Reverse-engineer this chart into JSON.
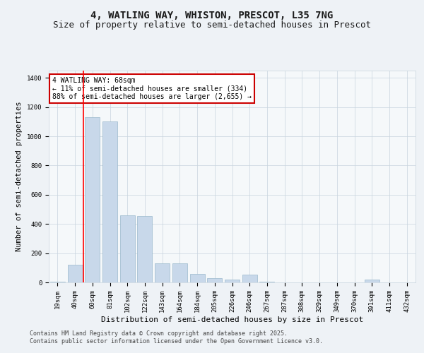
{
  "title": "4, WATLING WAY, WHISTON, PRESCOT, L35 7NG",
  "subtitle": "Size of property relative to semi-detached houses in Prescot",
  "xlabel": "Distribution of semi-detached houses by size in Prescot",
  "ylabel": "Number of semi-detached properties",
  "categories": [
    "19sqm",
    "40sqm",
    "60sqm",
    "81sqm",
    "102sqm",
    "122sqm",
    "143sqm",
    "164sqm",
    "184sqm",
    "205sqm",
    "226sqm",
    "246sqm",
    "267sqm",
    "287sqm",
    "308sqm",
    "329sqm",
    "349sqm",
    "370sqm",
    "391sqm",
    "411sqm",
    "432sqm"
  ],
  "values": [
    5,
    120,
    1130,
    1100,
    460,
    455,
    130,
    130,
    60,
    30,
    20,
    55,
    5,
    0,
    0,
    0,
    0,
    0,
    20,
    0,
    0
  ],
  "bar_color": "#c8d8ea",
  "bar_edge_color": "#9ab8cc",
  "red_line_index": 1.5,
  "annotation_text": "4 WATLING WAY: 68sqm\n← 11% of semi-detached houses are smaller (334)\n88% of semi-detached houses are larger (2,655) →",
  "annotation_box_color": "#ffffff",
  "annotation_box_edge_color": "#cc0000",
  "footer_line1": "Contains HM Land Registry data © Crown copyright and database right 2025.",
  "footer_line2": "Contains public sector information licensed under the Open Government Licence v3.0.",
  "bg_color": "#eef2f6",
  "plot_bg_color": "#f5f8fa",
  "grid_color": "#c8d4de",
  "ylim": [
    0,
    1450
  ],
  "yticks": [
    0,
    200,
    400,
    600,
    800,
    1000,
    1200,
    1400
  ],
  "title_fontsize": 10,
  "subtitle_fontsize": 9,
  "axis_label_fontsize": 7.5,
  "tick_fontsize": 6.5,
  "footer_fontsize": 6,
  "annot_fontsize": 7
}
